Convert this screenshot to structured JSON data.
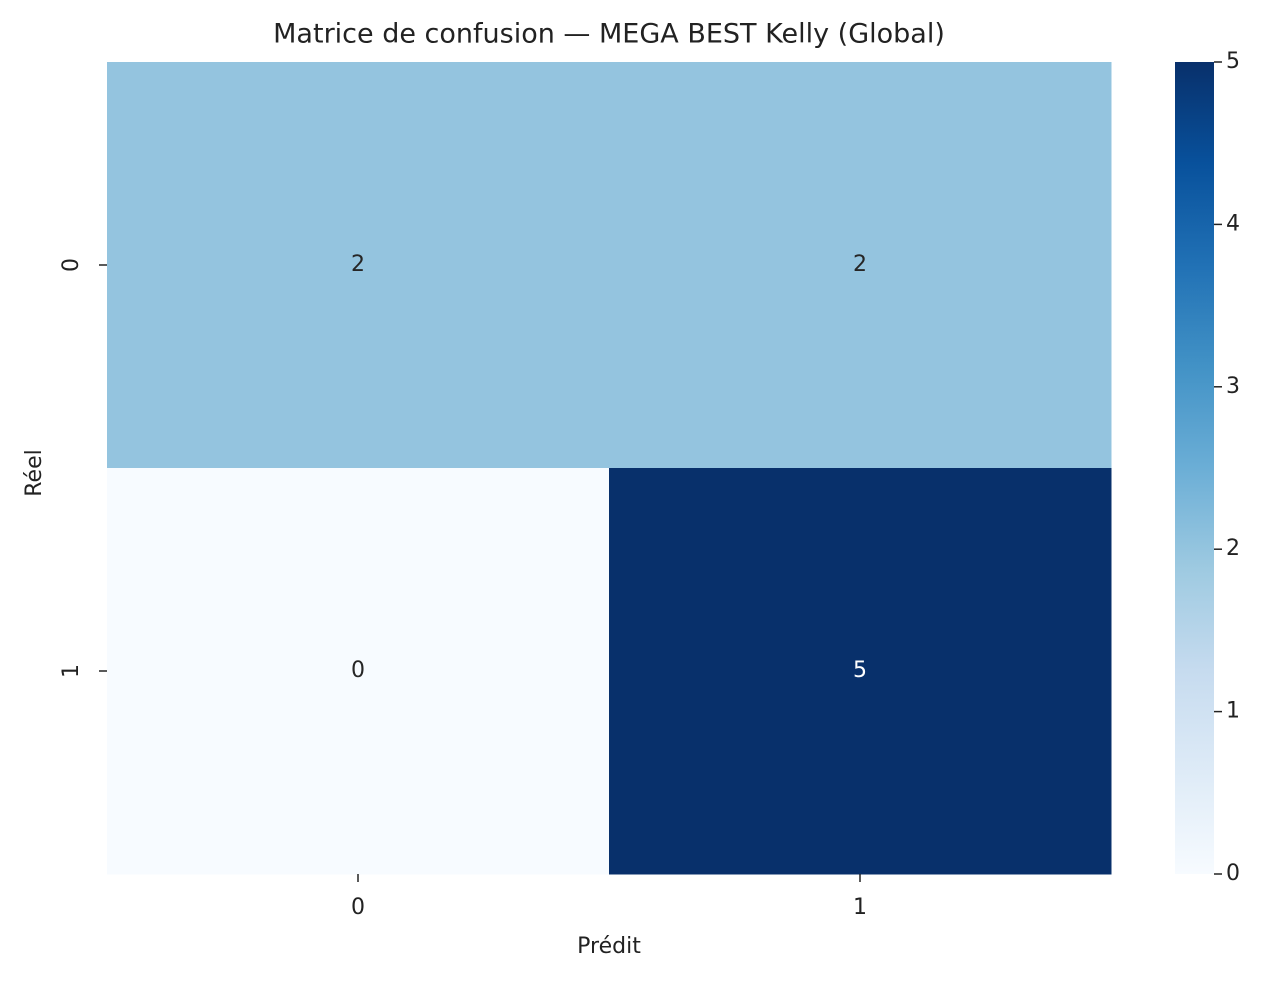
{
  "chart_data": {
    "type": "heatmap",
    "title": "Matrice de confusion — MEGA BEST Kelly (Global)",
    "x_label": "Prédit",
    "y_label": "Réel",
    "x_categories": [
      "0",
      "1"
    ],
    "y_categories": [
      "0",
      "1"
    ],
    "values": [
      [
        2,
        2
      ],
      [
        0,
        5
      ]
    ],
    "colormap": "Blues",
    "clim": [
      0,
      5
    ],
    "cticks": [
      0,
      1,
      2,
      3,
      4,
      5
    ]
  }
}
